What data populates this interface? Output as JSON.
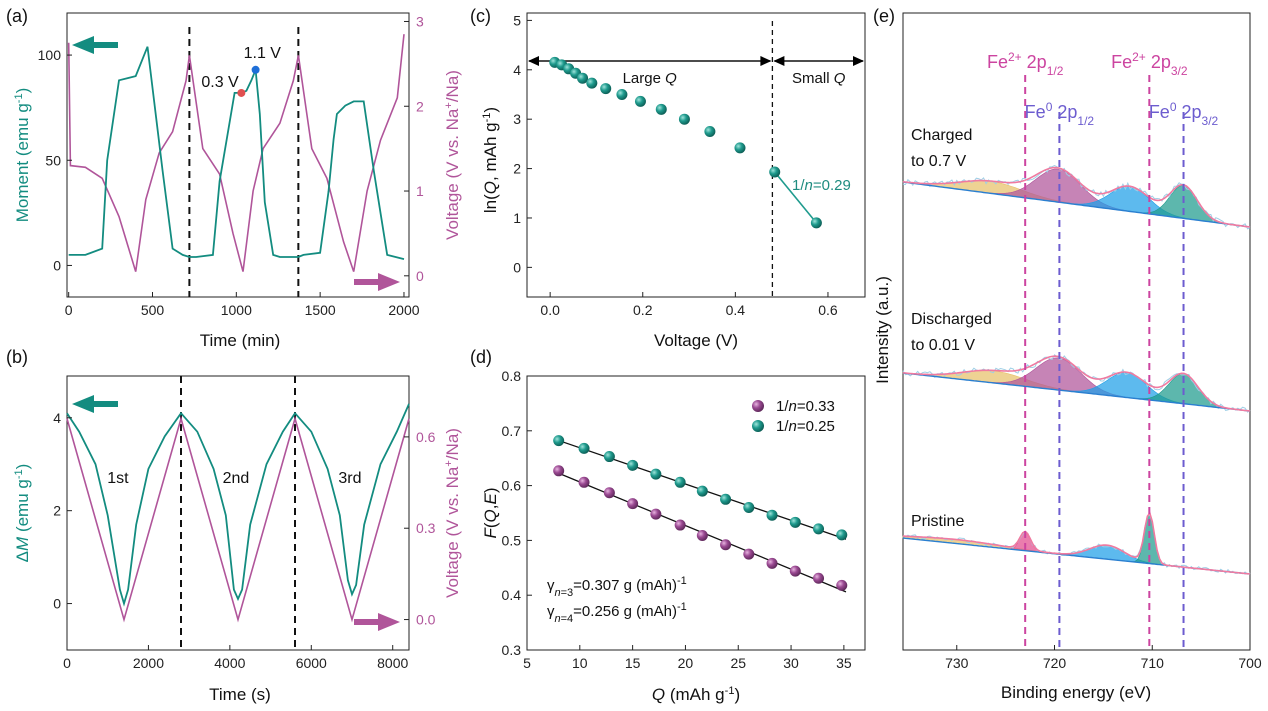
{
  "colors": {
    "teal": "#138c80",
    "magenta": "#b0559a",
    "pink": "#e24b8e",
    "purple": "#6c5ccf",
    "ball_teal": "#1f9b8e",
    "ball_purple": "#9b4a93",
    "blue_fit": "#1e88d8",
    "gold_fit": "#e7c16a",
    "envelope": "#f07aa0"
  },
  "chart_data": [
    {
      "panel": "(a)",
      "type": "line",
      "xlabel": "Time (min)",
      "ylabel": "Moment (emu g⁻¹)",
      "y2label": "Voltage (V vs. Na⁺/Na)",
      "xlim": [
        -10,
        2030
      ],
      "ylim": [
        -15,
        120
      ],
      "y2lim": [
        -0.25,
        3.1
      ],
      "xticks": [
        "0",
        "500",
        "1000",
        "1500",
        "2000"
      ],
      "yticks": [
        "0",
        "50",
        "100"
      ],
      "y2ticks": [
        "0",
        "1",
        "2",
        "3"
      ],
      "dashed_x": [
        720,
        1370
      ],
      "annotations": [
        {
          "text": "0.3 V",
          "x": 1030,
          "y": 82,
          "color": "#e05050"
        },
        {
          "text": "1.1 V",
          "x": 1115,
          "y": 93,
          "color": "#1e6fd8"
        }
      ],
      "series": [
        {
          "axis": "left",
          "color": "#138c80",
          "x": [
            0,
            100,
            200,
            230,
            300,
            400,
            470,
            560,
            620,
            680,
            720,
            760,
            860,
            900,
            960,
            990,
            1010,
            1030,
            1060,
            1090,
            1115,
            1140,
            1170,
            1220,
            1260,
            1300,
            1370,
            1400,
            1500,
            1550,
            1580,
            1600,
            1650,
            1700,
            1760,
            1820,
            1900,
            2000
          ],
          "y": [
            5,
            5,
            8,
            50,
            88,
            90,
            104,
            45,
            8,
            5,
            4,
            4,
            5,
            40,
            68,
            82,
            82,
            82,
            83,
            88,
            93,
            72,
            30,
            5,
            4,
            4,
            4,
            5,
            6,
            35,
            60,
            72,
            76,
            78,
            78,
            45,
            5,
            3
          ]
        },
        {
          "axis": "right",
          "color": "#b0559a",
          "x": [
            0,
            10,
            100,
            200,
            300,
            400,
            460,
            540,
            620,
            700,
            720,
            800,
            900,
            980,
            1040,
            1100,
            1160,
            1260,
            1340,
            1370,
            1450,
            1540,
            1640,
            1700,
            1780,
            1860,
            1960,
            2000
          ],
          "y": [
            2.75,
            1.3,
            1.28,
            1.15,
            0.7,
            0.05,
            0.9,
            1.45,
            1.7,
            2.3,
            2.6,
            1.5,
            1.2,
            0.5,
            0.05,
            1.0,
            1.5,
            1.8,
            2.3,
            2.6,
            1.5,
            1.15,
            0.4,
            0.05,
            1.0,
            1.6,
            2.1,
            2.85
          ]
        }
      ]
    },
    {
      "panel": "(b)",
      "type": "line",
      "xlabel": "Time (s)",
      "ylabel": "ΔM (emu g⁻¹)",
      "y2label": "Voltage (V vs. Na⁺/Na)",
      "xlim": [
        0,
        8400
      ],
      "ylim": [
        -1.0,
        4.9
      ],
      "y2lim": [
        -0.1,
        0.8
      ],
      "xticks": [
        "0",
        "2000",
        "4000",
        "6000",
        "8000"
      ],
      "yticks": [
        "0",
        "2",
        "4"
      ],
      "y2ticks": [
        "0.0",
        "0.3",
        "0.6"
      ],
      "dashed_x": [
        2800,
        5600
      ],
      "labels": [
        {
          "text": "1st",
          "x": 1250,
          "y": 2.6
        },
        {
          "text": "2nd",
          "x": 4150,
          "y": 2.6
        },
        {
          "text": "3rd",
          "x": 6950,
          "y": 2.6
        }
      ],
      "series": [
        {
          "axis": "left",
          "color": "#138c80",
          "x": [
            0,
            300,
            700,
            1000,
            1300,
            1400,
            1500,
            1700,
            2000,
            2400,
            2800,
            3200,
            3600,
            3900,
            4100,
            4200,
            4300,
            4500,
            4900,
            5300,
            5600,
            6000,
            6400,
            6700,
            6900,
            7000,
            7100,
            7300,
            7700,
            8100,
            8400
          ],
          "y": [
            4.1,
            3.7,
            3.0,
            1.9,
            0.3,
            0.0,
            0.3,
            1.7,
            2.9,
            3.6,
            4.1,
            3.7,
            2.9,
            1.9,
            0.3,
            0.1,
            0.3,
            1.7,
            3.0,
            3.7,
            4.1,
            3.7,
            2.9,
            1.9,
            0.5,
            0.2,
            0.4,
            1.7,
            3.0,
            3.7,
            4.3
          ]
        },
        {
          "axis": "right",
          "color": "#b0559a",
          "x": [
            0,
            1400,
            2800,
            4200,
            5600,
            7000,
            8400
          ],
          "y": [
            0.66,
            0.0,
            0.66,
            0.0,
            0.66,
            0.0,
            0.66
          ]
        }
      ]
    },
    {
      "panel": "(c)",
      "type": "scatter",
      "xlabel": "Voltage (V)",
      "ylabel": "ln(Q, mAh g⁻¹)",
      "xlim": [
        -0.05,
        0.68
      ],
      "ylim": [
        -0.6,
        5.15
      ],
      "xticks": [
        "0.0",
        "0.2",
        "0.4",
        "0.6"
      ],
      "yticks": [
        "0",
        "1",
        "2",
        "3",
        "4",
        "5"
      ],
      "dashed_x": [
        0.48
      ],
      "regions": [
        {
          "text": "Large Q",
          "from": -0.05,
          "to": 0.48
        },
        {
          "text": "Small Q",
          "from": 0.48,
          "to": 0.68
        }
      ],
      "annotation": "1/n=0.29",
      "x": [
        0.01,
        0.025,
        0.04,
        0.055,
        0.07,
        0.09,
        0.12,
        0.155,
        0.195,
        0.24,
        0.29,
        0.345,
        0.41,
        0.485,
        0.575
      ],
      "y": [
        4.15,
        4.1,
        4.02,
        3.93,
        3.83,
        3.73,
        3.62,
        3.5,
        3.36,
        3.2,
        3.0,
        2.75,
        2.42,
        1.93,
        0.9
      ]
    },
    {
      "panel": "(d)",
      "type": "scatter",
      "xlabel": "Q (mAh g⁻¹)",
      "ylabel": "F(Q,E)",
      "xlim": [
        5,
        37
      ],
      "ylim": [
        0.3,
        0.8
      ],
      "xticks": [
        "5",
        "10",
        "15",
        "20",
        "25",
        "30",
        "35"
      ],
      "yticks": [
        "0.3",
        "0.4",
        "0.5",
        "0.6",
        "0.7",
        "0.8"
      ],
      "gamma3": "=0.307 g (mAh)",
      "gamma4": "=0.256 g (mAh)",
      "series": [
        {
          "name": "1/n=0.33",
          "color": "#9b4a93",
          "x": [
            8,
            10.4,
            12.8,
            15,
            17.2,
            19.5,
            21.6,
            23.8,
            26,
            28.2,
            30.4,
            32.6,
            34.8
          ],
          "y": [
            0.627,
            0.606,
            0.587,
            0.567,
            0.548,
            0.528,
            0.509,
            0.492,
            0.475,
            0.458,
            0.444,
            0.431,
            0.418
          ]
        },
        {
          "name": "1/n=0.25",
          "color": "#1f9b8e",
          "x": [
            8,
            10.4,
            12.8,
            15,
            17.2,
            19.5,
            21.6,
            23.8,
            26,
            28.2,
            30.4,
            32.6,
            34.8
          ],
          "y": [
            0.682,
            0.668,
            0.653,
            0.637,
            0.621,
            0.606,
            0.59,
            0.575,
            0.56,
            0.546,
            0.533,
            0.521,
            0.51
          ]
        }
      ]
    },
    {
      "panel": "(e)",
      "type": "line",
      "xlabel": "Binding energy (eV)",
      "ylabel": "Intensity (a.u.)",
      "xlim": [
        735.5,
        700
      ],
      "xticks": [
        "730",
        "720",
        "710",
        "700"
      ],
      "lines": [
        {
          "text_a": "Fe",
          "sup_a": "2+",
          "text_b": " 2p",
          "sub_b": "1/2",
          "x": 723,
          "color": "#cc44a0"
        },
        {
          "text_a": "Fe",
          "sup_a": "0",
          "text_b": " 2p",
          "sub_b": "1/2",
          "x": 719.5,
          "color": "#6c5ccf"
        },
        {
          "text_a": "Fe",
          "sup_a": "2+",
          "text_b": " 2p",
          "sub_b": "3/2",
          "x": 710.3,
          "color": "#cc44a0"
        },
        {
          "text_a": "Fe",
          "sup_a": "0",
          "text_b": " 2p",
          "sub_b": "3/2",
          "x": 706.8,
          "color": "#6c5ccf"
        }
      ],
      "spectra": [
        {
          "label1": "Charged",
          "label2": "to 0.7 V"
        },
        {
          "label1": "Discharged",
          "label2": "to 0.01 V"
        },
        {
          "label1": "Pristine",
          "label2": ""
        }
      ]
    }
  ]
}
